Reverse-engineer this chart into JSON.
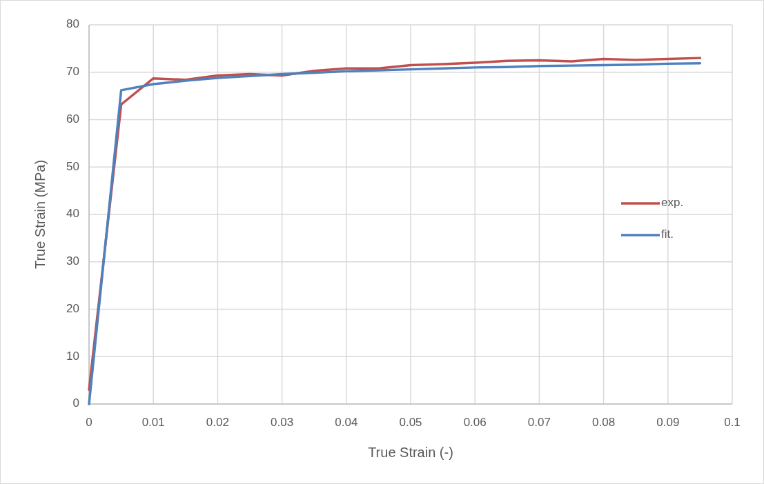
{
  "chart_data": {
    "type": "line",
    "xlabel": "True Strain (-)",
    "ylabel": "True Strain (MPa)",
    "x": [
      0,
      0.005,
      0.01,
      0.015,
      0.02,
      0.025,
      0.03,
      0.035,
      0.04,
      0.045,
      0.05,
      0.055,
      0.06,
      0.065,
      0.07,
      0.075,
      0.08,
      0.085,
      0.09,
      0.095
    ],
    "series": [
      {
        "name": "exp.",
        "color": "#c0504d",
        "values": [
          3,
          63.2,
          68.7,
          68.4,
          69.3,
          69.6,
          69.3,
          70.3,
          70.8,
          70.8,
          71.5,
          71.7,
          72.0,
          72.4,
          72.5,
          72.3,
          72.8,
          72.6,
          72.8,
          73.0
        ]
      },
      {
        "name": "fit.",
        "color": "#4f81bd",
        "values": [
          0,
          66.2,
          67.5,
          68.2,
          68.8,
          69.2,
          69.6,
          69.9,
          70.2,
          70.4,
          70.6,
          70.8,
          71.0,
          71.1,
          71.3,
          71.4,
          71.5,
          71.6,
          71.8,
          71.9
        ]
      }
    ],
    "xlim": [
      0,
      0.1
    ],
    "xticks": [
      0,
      0.01,
      0.02,
      0.03,
      0.04,
      0.05,
      0.06,
      0.07,
      0.08,
      0.09,
      0.1
    ],
    "ylim": [
      0,
      80
    ],
    "yticks": [
      0,
      10,
      20,
      30,
      40,
      50,
      60,
      70,
      80
    ],
    "grid": true,
    "legend": "right",
    "marker": "none",
    "line_style": "solid"
  }
}
